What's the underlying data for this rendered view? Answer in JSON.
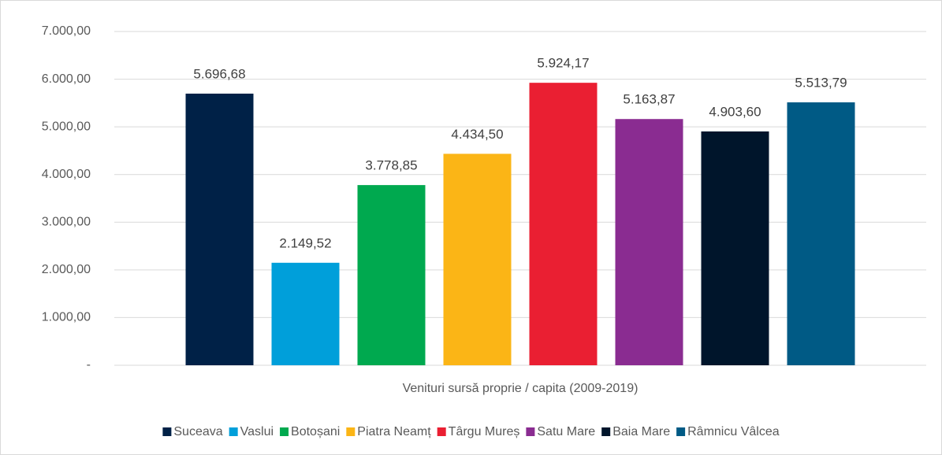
{
  "chart_data": {
    "type": "bar",
    "categories": [
      "Venituri sursă proprie / capita (2009-2019)"
    ],
    "series": [
      {
        "name": "Suceava",
        "color": "#002147",
        "values": [
          5696.68
        ],
        "value_labels": [
          "5.696,68"
        ]
      },
      {
        "name": "Vaslui",
        "color": "#009fda",
        "values": [
          2149.52
        ],
        "value_labels": [
          "2.149,52"
        ]
      },
      {
        "name": "Botoșani",
        "color": "#00a94f",
        "values": [
          3778.85
        ],
        "value_labels": [
          "3.778,85"
        ]
      },
      {
        "name": "Piatra Neamț",
        "color": "#fbb516",
        "values": [
          4434.5
        ],
        "value_labels": [
          "4.434,50"
        ]
      },
      {
        "name": "Târgu Mureș",
        "color": "#ea1f32",
        "values": [
          5924.17
        ],
        "value_labels": [
          "5.924,17"
        ]
      },
      {
        "name": "Satu Mare",
        "color": "#8a2c91",
        "values": [
          5163.87
        ],
        "value_labels": [
          "5.163,87"
        ]
      },
      {
        "name": "Baia Mare",
        "color": "#00152b",
        "values": [
          4903.6
        ],
        "value_labels": [
          "4.903,60"
        ]
      },
      {
        "name": "Râmnicu Vâlcea",
        "color": "#005a85",
        "values": [
          5513.79
        ],
        "value_labels": [
          "5.513,79"
        ]
      }
    ],
    "ylim": [
      0,
      7000
    ],
    "yticks": [
      {
        "value": 0,
        "label": "-"
      },
      {
        "value": 1000,
        "label": "1.000,00"
      },
      {
        "value": 2000,
        "label": "2.000,00"
      },
      {
        "value": 3000,
        "label": "3.000,00"
      },
      {
        "value": 4000,
        "label": "4.000,00"
      },
      {
        "value": 5000,
        "label": "5.000,00"
      },
      {
        "value": 6000,
        "label": "6.000,00"
      },
      {
        "value": 7000,
        "label": "7.000,00"
      }
    ],
    "grid": true,
    "legend": "bottom"
  }
}
